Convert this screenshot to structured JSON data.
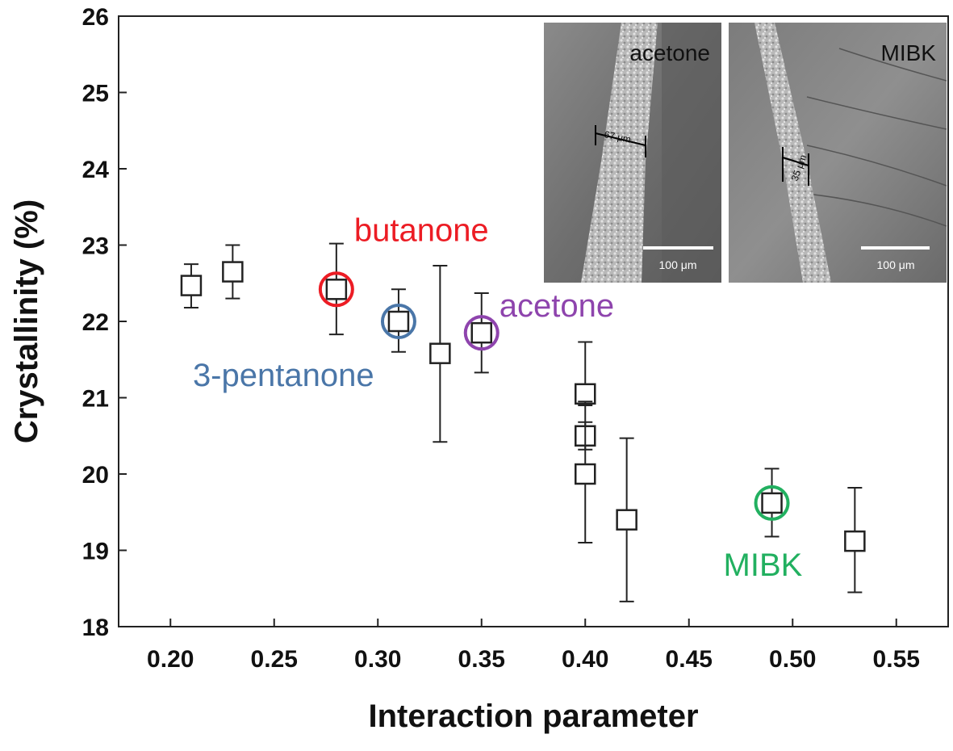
{
  "chart_data": {
    "type": "scatter",
    "xlabel": "Interaction parameter",
    "ylabel": "Crystallinity (%)",
    "xlim": [
      0.175,
      0.575
    ],
    "ylim": [
      18,
      26
    ],
    "x_ticks": [
      "0.20",
      "0.25",
      "0.30",
      "0.35",
      "0.40",
      "0.45",
      "0.50",
      "0.55"
    ],
    "y_ticks": [
      "18",
      "19",
      "20",
      "21",
      "22",
      "23",
      "24",
      "25",
      "26"
    ],
    "grid": false,
    "marker": "open-square",
    "points": [
      {
        "x": 0.21,
        "y": 22.47,
        "err_low": 22.18,
        "err_high": 22.75
      },
      {
        "x": 0.23,
        "y": 22.65,
        "err_low": 22.3,
        "err_high": 23.0
      },
      {
        "x": 0.28,
        "y": 22.42,
        "err_low": 21.83,
        "err_high": 23.02
      },
      {
        "x": 0.31,
        "y": 22.0,
        "err_low": 21.6,
        "err_high": 22.42
      },
      {
        "x": 0.33,
        "y": 21.58,
        "err_low": 20.42,
        "err_high": 22.73
      },
      {
        "x": 0.35,
        "y": 21.85,
        "err_low": 21.33,
        "err_high": 22.37
      },
      {
        "x": 0.4,
        "y": 21.05,
        "err_low": 20.9,
        "err_high": 21.73
      },
      {
        "x": 0.4,
        "y": 20.5,
        "err_low": 20.32,
        "err_high": 20.68
      },
      {
        "x": 0.4,
        "y": 20.0,
        "err_low": 19.1,
        "err_high": 20.95
      },
      {
        "x": 0.42,
        "y": 19.4,
        "err_low": 18.33,
        "err_high": 20.47
      },
      {
        "x": 0.49,
        "y": 19.62,
        "err_low": 19.18,
        "err_high": 20.07
      },
      {
        "x": 0.53,
        "y": 19.12,
        "err_low": 18.45,
        "err_high": 19.82
      }
    ],
    "annotations": [
      {
        "text": "butanone",
        "x": 0.28,
        "y": 22.42,
        "color": "#ec1c24"
      },
      {
        "text": "3-pentanone",
        "x": 0.31,
        "y": 22.0,
        "color": "#4a76a8"
      },
      {
        "text": "acetone",
        "x": 0.35,
        "y": 21.85,
        "color": "#8e44ad"
      },
      {
        "text": "MIBK",
        "x": 0.49,
        "y": 19.62,
        "color": "#22b060"
      }
    ]
  },
  "insets": [
    {
      "label": "acetone",
      "thickness": "67 μm",
      "scale_bar": "100 μm"
    },
    {
      "label": "MIBK",
      "thickness": "35 μm",
      "scale_bar": "100 μm"
    }
  ]
}
